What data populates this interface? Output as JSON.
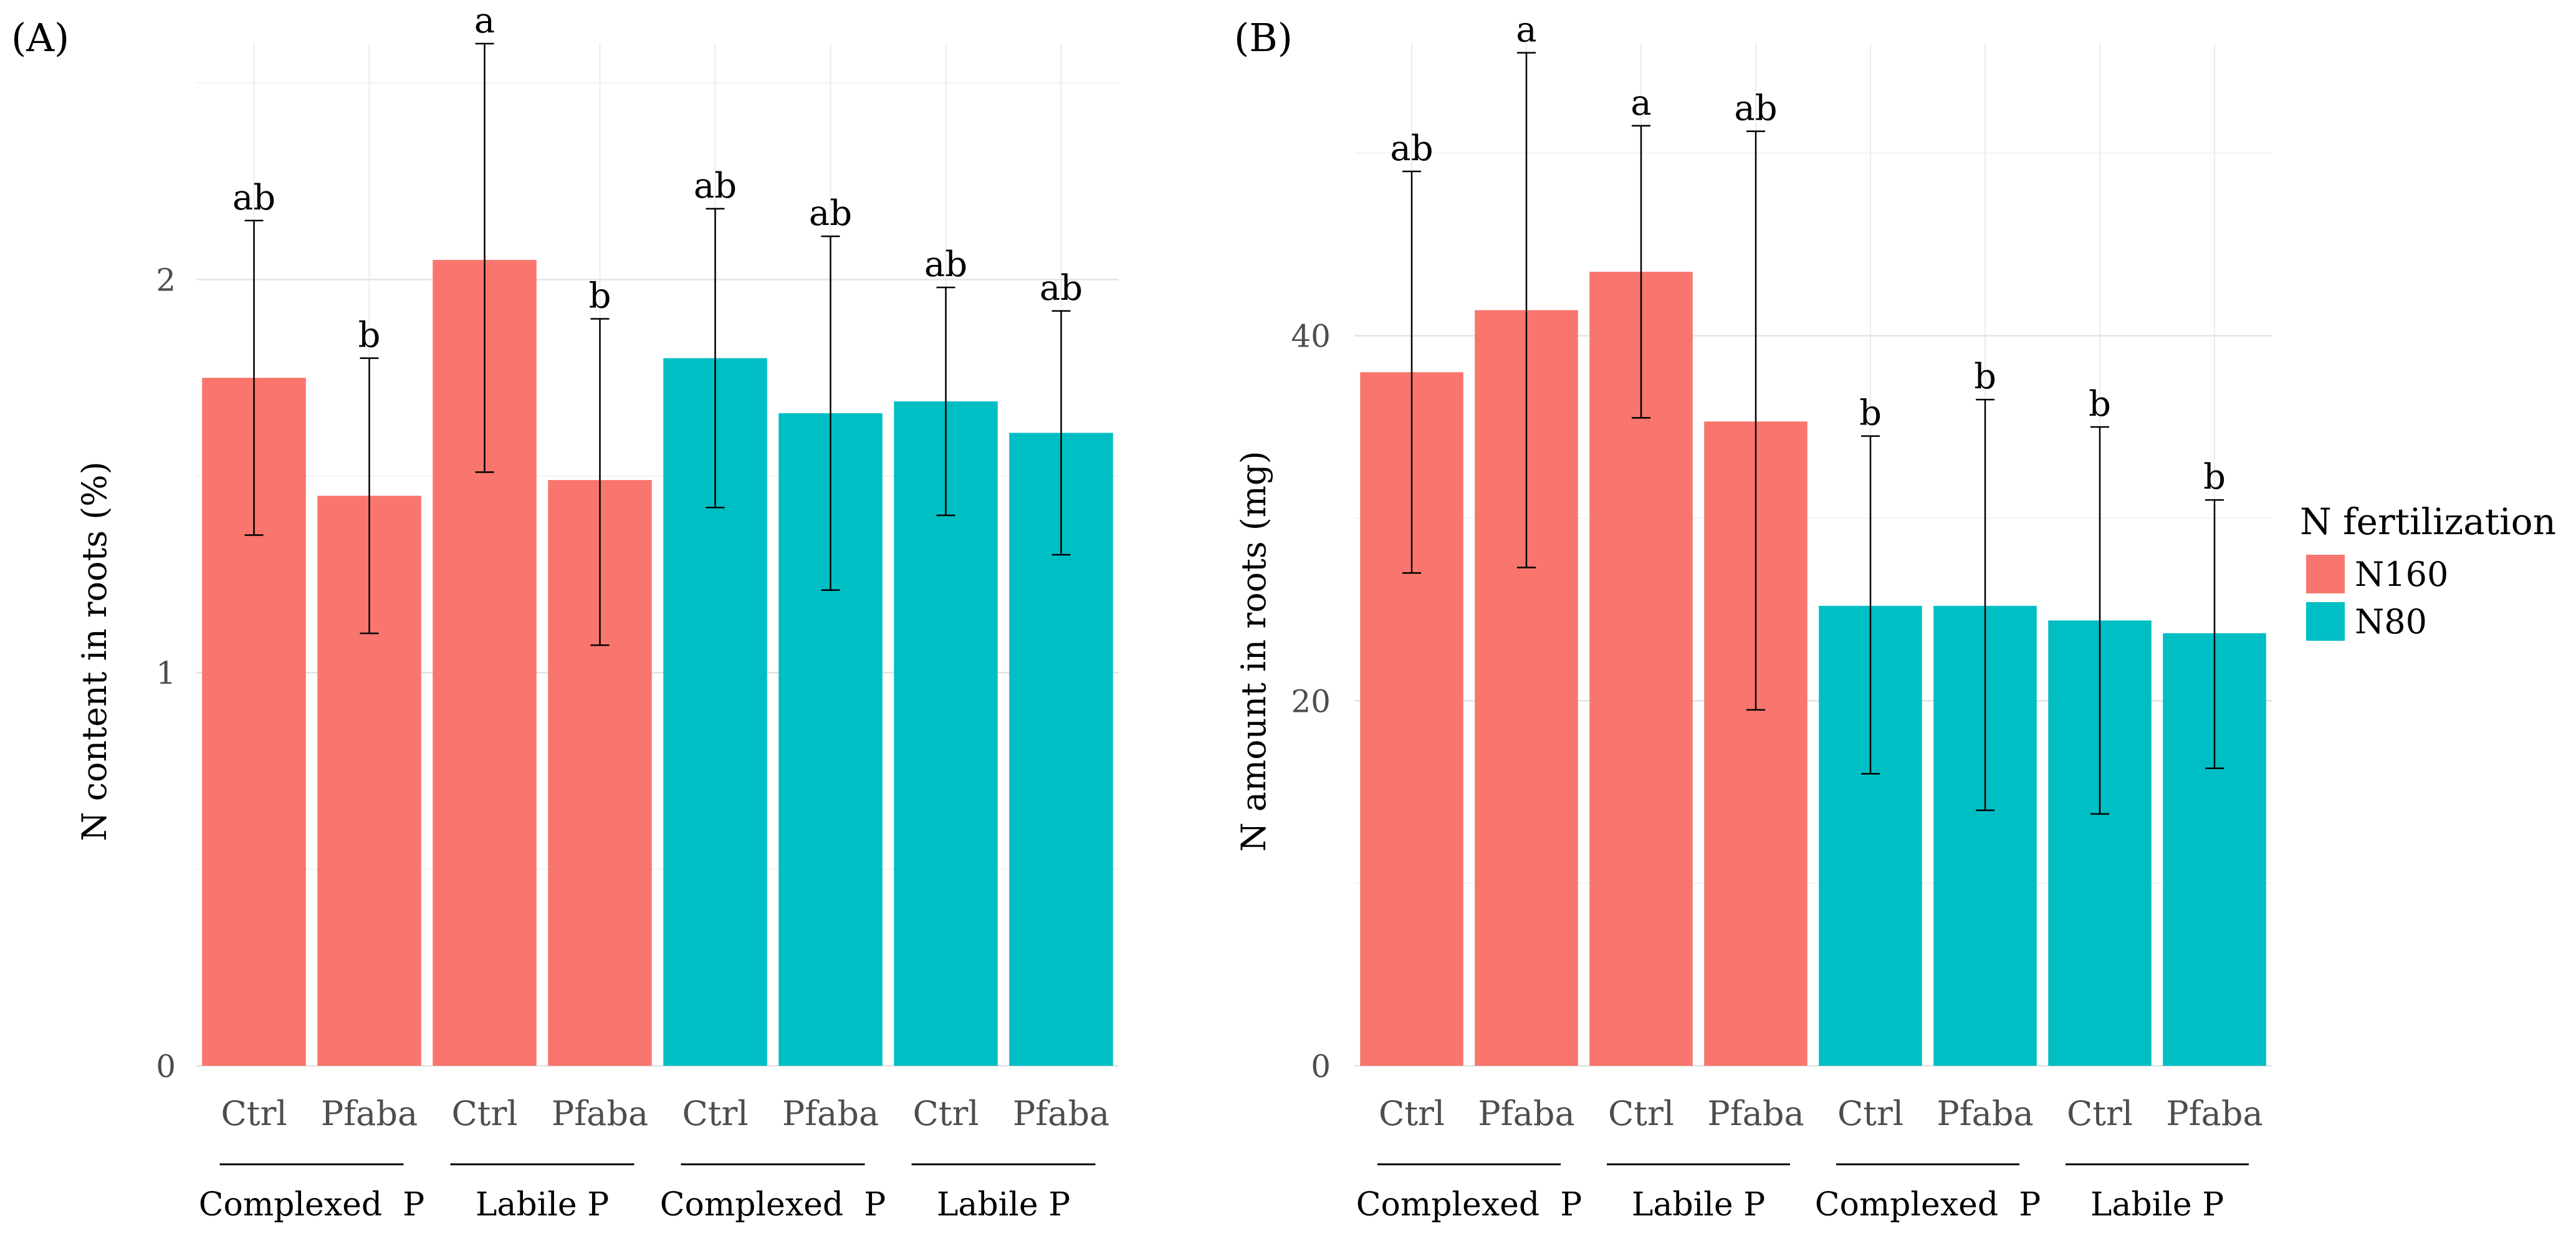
{
  "legend": {
    "title": "N fertilization",
    "entries": [
      {
        "label": "N160",
        "color": "#F8766D"
      },
      {
        "label": "N80",
        "color": "#00BFC4"
      }
    ]
  },
  "chart_data": [
    {
      "panel_label": "(A)",
      "type": "bar",
      "ylabel": "N content in roots (%)",
      "ylim": [
        0,
        2.6
      ],
      "yticks": [
        0,
        1,
        2
      ],
      "ytick_labels": [
        "0",
        "1",
        "2"
      ],
      "minor_grid": [
        0.5,
        1.5,
        2.5
      ],
      "categories": [
        "Ctrl",
        "Pfaba",
        "Ctrl",
        "Pfaba",
        "Ctrl",
        "Pfaba",
        "Ctrl",
        "Pfaba"
      ],
      "groups": [
        "Complexed  P",
        "Labile P",
        "Complexed  P",
        "Labile P"
      ],
      "fertilization": [
        "N160",
        "N160",
        "N160",
        "N160",
        "N80",
        "N80",
        "N80",
        "N80"
      ],
      "values": [
        1.75,
        1.45,
        2.05,
        1.49,
        1.8,
        1.66,
        1.69,
        1.61
      ],
      "err_low": [
        1.35,
        1.1,
        1.51,
        1.07,
        1.42,
        1.21,
        1.4,
        1.3
      ],
      "err_high": [
        2.15,
        1.8,
        2.6,
        1.9,
        2.18,
        2.11,
        1.98,
        1.92
      ],
      "sig_labels": [
        "ab",
        "b",
        "a",
        "b",
        "ab",
        "ab",
        "ab",
        "ab"
      ]
    },
    {
      "panel_label": "(B)",
      "type": "bar",
      "ylabel": "N amount in roots (mg)",
      "ylim": [
        0,
        56
      ],
      "yticks": [
        0,
        20,
        40
      ],
      "ytick_labels": [
        "0",
        "20",
        "40"
      ],
      "minor_grid": [
        10,
        30,
        50
      ],
      "categories": [
        "Ctrl",
        "Pfaba",
        "Ctrl",
        "Pfaba",
        "Ctrl",
        "Pfaba",
        "Ctrl",
        "Pfaba"
      ],
      "groups": [
        "Complexed  P",
        "Labile P",
        "Complexed  P",
        "Labile P"
      ],
      "fertilization": [
        "N160",
        "N160",
        "N160",
        "N160",
        "N80",
        "N80",
        "N80",
        "N80"
      ],
      "values": [
        38.0,
        41.4,
        43.5,
        35.3,
        25.2,
        25.2,
        24.4,
        23.7
      ],
      "err_low": [
        27.0,
        27.3,
        35.5,
        19.5,
        16.0,
        14.0,
        13.8,
        16.3
      ],
      "err_high": [
        49.0,
        55.5,
        51.5,
        51.2,
        34.5,
        36.5,
        35.0,
        31.0
      ],
      "sig_labels": [
        "ab",
        "a",
        "a",
        "ab",
        "b",
        "b",
        "b",
        "b"
      ]
    }
  ]
}
